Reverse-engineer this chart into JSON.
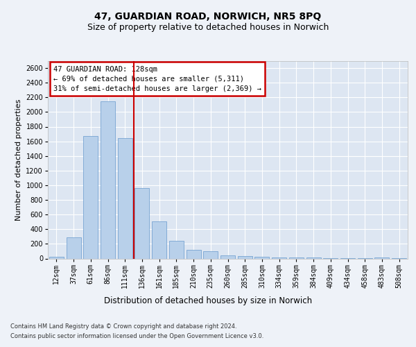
{
  "title_line1": "47, GUARDIAN ROAD, NORWICH, NR5 8PQ",
  "title_line2": "Size of property relative to detached houses in Norwich",
  "xlabel": "Distribution of detached houses by size in Norwich",
  "ylabel": "Number of detached properties",
  "categories": [
    "12sqm",
    "37sqm",
    "61sqm",
    "86sqm",
    "111sqm",
    "136sqm",
    "161sqm",
    "185sqm",
    "210sqm",
    "235sqm",
    "260sqm",
    "285sqm",
    "310sqm",
    "334sqm",
    "359sqm",
    "384sqm",
    "409sqm",
    "434sqm",
    "458sqm",
    "483sqm",
    "508sqm"
  ],
  "values": [
    25,
    290,
    1670,
    2150,
    1640,
    960,
    510,
    245,
    115,
    100,
    40,
    30,
    20,
    15,
    10,
    10,
    8,
    5,
    5,
    10,
    5
  ],
  "bar_color": "#b8d0ea",
  "bar_edge_color": "#6699cc",
  "red_line_color": "#cc0000",
  "red_line_x": 4.5,
  "annotation_line1": "47 GUARDIAN ROAD: 128sqm",
  "annotation_line2": "← 69% of detached houses are smaller (5,311)",
  "annotation_line3": "31% of semi-detached houses are larger (2,369) →",
  "annotation_box_facecolor": "#ffffff",
  "annotation_box_edgecolor": "#cc0000",
  "ylim": [
    0,
    2700
  ],
  "yticks": [
    0,
    200,
    400,
    600,
    800,
    1000,
    1200,
    1400,
    1600,
    1800,
    2000,
    2200,
    2400,
    2600
  ],
  "bg_color": "#eef2f8",
  "plot_bg_color": "#dde6f2",
  "grid_color": "#ffffff",
  "title_fontsize": 10,
  "subtitle_fontsize": 9,
  "tick_fontsize": 7,
  "ylabel_fontsize": 8,
  "xlabel_fontsize": 8.5,
  "annotation_fontsize": 7.5,
  "footer_fontsize": 6,
  "footer_line1": "Contains HM Land Registry data © Crown copyright and database right 2024.",
  "footer_line2": "Contains public sector information licensed under the Open Government Licence v3.0."
}
